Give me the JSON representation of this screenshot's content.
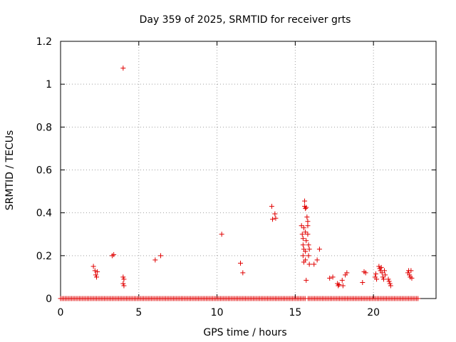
{
  "chart_data": {
    "type": "scatter",
    "title": "Day 359 of 2025, SRMTID for receiver grts",
    "xlabel": "GPS time / hours",
    "ylabel": "SRMTID / TECUs",
    "xlim": [
      0,
      24
    ],
    "ylim": [
      0,
      1.2
    ],
    "xticks": [
      0,
      5,
      10,
      15,
      20
    ],
    "yticks": [
      0,
      0.2,
      0.4,
      0.6,
      0.8,
      1,
      1.2
    ],
    "xtick_labels": [
      "0",
      "5",
      "10",
      "15",
      "20"
    ],
    "ytick_labels": [
      "0",
      "0.2",
      "0.4",
      "0.6",
      "0.8",
      "1",
      "1.2"
    ],
    "grid": true,
    "marker": "+",
    "color": "#e00000",
    "baseline": {
      "y": 0,
      "x_start": 0,
      "x_end": 22.9,
      "gaps": [
        [
          15.65,
          15.8
        ]
      ]
    },
    "series": [
      {
        "name": "SRMTID",
        "points": [
          [
            2.1,
            0.15
          ],
          [
            2.2,
            0.13
          ],
          [
            2.25,
            0.11
          ],
          [
            2.3,
            0.1
          ],
          [
            2.35,
            0.125
          ],
          [
            3.3,
            0.2
          ],
          [
            3.4,
            0.205
          ],
          [
            4.0,
            1.075
          ],
          [
            4.0,
            0.1
          ],
          [
            4.05,
            0.09
          ],
          [
            4.0,
            0.07
          ],
          [
            4.05,
            0.06
          ],
          [
            6.05,
            0.18
          ],
          [
            6.4,
            0.2
          ],
          [
            10.3,
            0.3
          ],
          [
            11.5,
            0.165
          ],
          [
            11.65,
            0.12
          ],
          [
            13.5,
            0.43
          ],
          [
            13.55,
            0.37
          ],
          [
            13.7,
            0.395
          ],
          [
            13.75,
            0.375
          ],
          [
            15.4,
            0.34
          ],
          [
            15.45,
            0.3
          ],
          [
            15.5,
            0.28
          ],
          [
            15.5,
            0.25
          ],
          [
            15.5,
            0.2
          ],
          [
            15.55,
            0.33
          ],
          [
            15.55,
            0.23
          ],
          [
            15.55,
            0.17
          ],
          [
            15.6,
            0.455
          ],
          [
            15.6,
            0.43
          ],
          [
            15.65,
            0.42
          ],
          [
            15.65,
            0.31
          ],
          [
            15.65,
            0.22
          ],
          [
            15.65,
            0.18
          ],
          [
            15.7,
            0.425
          ],
          [
            15.7,
            0.27
          ],
          [
            15.7,
            0.085
          ],
          [
            15.75,
            0.38
          ],
          [
            15.8,
            0.36
          ],
          [
            15.8,
            0.34
          ],
          [
            15.8,
            0.3
          ],
          [
            15.85,
            0.25
          ],
          [
            15.85,
            0.2
          ],
          [
            15.9,
            0.23
          ],
          [
            15.9,
            0.16
          ],
          [
            16.2,
            0.16
          ],
          [
            16.4,
            0.18
          ],
          [
            16.55,
            0.23
          ],
          [
            17.2,
            0.095
          ],
          [
            17.4,
            0.1
          ],
          [
            17.7,
            0.07
          ],
          [
            17.75,
            0.06
          ],
          [
            17.8,
            0.065
          ],
          [
            18.0,
            0.085
          ],
          [
            18.05,
            0.06
          ],
          [
            18.2,
            0.11
          ],
          [
            18.3,
            0.12
          ],
          [
            19.3,
            0.075
          ],
          [
            19.4,
            0.125
          ],
          [
            19.5,
            0.12
          ],
          [
            20.1,
            0.1
          ],
          [
            20.15,
            0.115
          ],
          [
            20.2,
            0.09
          ],
          [
            20.35,
            0.15
          ],
          [
            20.4,
            0.14
          ],
          [
            20.45,
            0.13
          ],
          [
            20.5,
            0.145
          ],
          [
            20.55,
            0.12
          ],
          [
            20.6,
            0.1
          ],
          [
            20.65,
            0.09
          ],
          [
            20.7,
            0.13
          ],
          [
            20.75,
            0.11
          ],
          [
            20.95,
            0.09
          ],
          [
            21.0,
            0.08
          ],
          [
            21.05,
            0.07
          ],
          [
            21.1,
            0.06
          ],
          [
            22.2,
            0.12
          ],
          [
            22.25,
            0.13
          ],
          [
            22.3,
            0.11
          ],
          [
            22.35,
            0.1
          ],
          [
            22.4,
            0.13
          ],
          [
            22.45,
            0.095
          ]
        ]
      }
    ]
  }
}
